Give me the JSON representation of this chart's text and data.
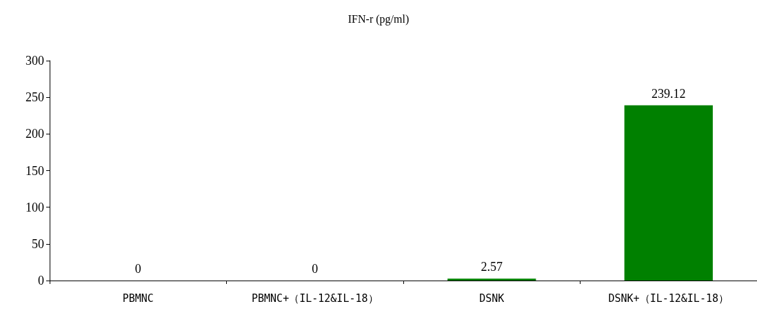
{
  "chart_data": {
    "type": "bar",
    "title": "IFN-r (pg/ml)",
    "categories": [
      "PBMNC",
      "PBMNC+（IL-12&IL-18）",
      "DSNK",
      "DSNK+（IL-12&IL-18）"
    ],
    "values": [
      0,
      0,
      2.57,
      239.12
    ],
    "color": "#008000",
    "ylim": [
      0,
      300
    ],
    "yticks": [
      0,
      50,
      100,
      150,
      200,
      250,
      300
    ],
    "grid": false,
    "data_labels": true
  }
}
